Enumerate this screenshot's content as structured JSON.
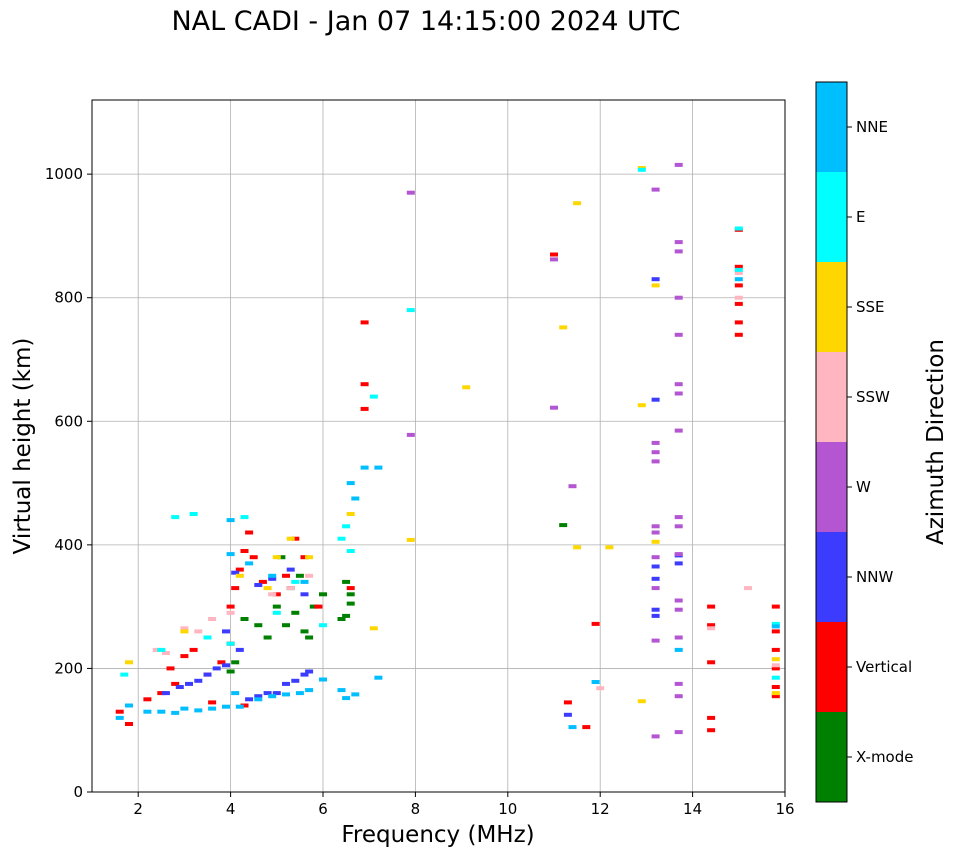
{
  "chart_data": {
    "type": "scatter",
    "title": "NAL CADI - Jan 07 14:15:00 2024 UTC",
    "xlabel": "Frequency (MHz)",
    "ylabel": "Virtual height (km)",
    "xlim": [
      1,
      16
    ],
    "ylim": [
      0,
      1120
    ],
    "xticks": [
      2,
      4,
      6,
      8,
      10,
      12,
      14,
      16
    ],
    "yticks": [
      0,
      200,
      400,
      600,
      800,
      1000
    ],
    "grid": true,
    "colorbar": {
      "label": "Azimuth Direction",
      "categories": [
        "X-mode",
        "Vertical",
        "NNW",
        "W",
        "SSW",
        "SSE",
        "E",
        "NNE"
      ],
      "colors": [
        "#008000",
        "#ff0000",
        "#3c3cff",
        "#b455d2",
        "#ffb6c1",
        "#ffd700",
        "#00ffff",
        "#00bfff"
      ]
    },
    "series": [
      {
        "name": "X-mode",
        "points": [
          [
            4.0,
            195
          ],
          [
            4.1,
            210
          ],
          [
            4.3,
            280
          ],
          [
            4.6,
            270
          ],
          [
            4.8,
            250
          ],
          [
            5.0,
            300
          ],
          [
            5.2,
            270
          ],
          [
            5.4,
            290
          ],
          [
            5.6,
            260
          ],
          [
            5.7,
            250
          ],
          [
            5.8,
            300
          ],
          [
            6.0,
            320
          ],
          [
            6.4,
            280
          ],
          [
            6.5,
            285
          ],
          [
            6.5,
            340
          ],
          [
            6.6,
            305
          ],
          [
            6.6,
            320
          ],
          [
            5.3,
            330
          ],
          [
            5.5,
            350
          ],
          [
            5.1,
            380
          ],
          [
            11.2,
            432
          ]
        ]
      },
      {
        "name": "Vertical",
        "points": [
          [
            1.6,
            130
          ],
          [
            1.8,
            110
          ],
          [
            2.2,
            150
          ],
          [
            2.5,
            160
          ],
          [
            2.7,
            200
          ],
          [
            3.0,
            220
          ],
          [
            3.2,
            230
          ],
          [
            3.5,
            190
          ],
          [
            3.8,
            210
          ],
          [
            4.0,
            240
          ],
          [
            4.0,
            300
          ],
          [
            4.1,
            330
          ],
          [
            4.2,
            360
          ],
          [
            4.3,
            390
          ],
          [
            4.4,
            420
          ],
          [
            4.5,
            380
          ],
          [
            4.7,
            340
          ],
          [
            5.0,
            320
          ],
          [
            5.2,
            350
          ],
          [
            5.4,
            410
          ],
          [
            5.6,
            380
          ],
          [
            5.9,
            300
          ],
          [
            6.6,
            330
          ],
          [
            6.9,
            620
          ],
          [
            6.9,
            660
          ],
          [
            6.9,
            760
          ],
          [
            11.0,
            870
          ],
          [
            11.3,
            145
          ],
          [
            11.9,
            272
          ],
          [
            11.7,
            105
          ],
          [
            2.8,
            175
          ],
          [
            3.6,
            145
          ],
          [
            4.3,
            140
          ],
          [
            14.4,
            300
          ],
          [
            14.4,
            270
          ],
          [
            14.4,
            210
          ],
          [
            14.4,
            120
          ],
          [
            14.4,
            100
          ],
          [
            15.0,
            910
          ],
          [
            15.0,
            850
          ],
          [
            15.0,
            820
          ],
          [
            15.0,
            790
          ],
          [
            15.0,
            760
          ],
          [
            15.0,
            740
          ],
          [
            15.8,
            300
          ],
          [
            15.8,
            260
          ],
          [
            15.8,
            230
          ],
          [
            15.8,
            200
          ],
          [
            15.8,
            170
          ],
          [
            15.8,
            155
          ]
        ]
      },
      {
        "name": "NNW",
        "points": [
          [
            2.6,
            160
          ],
          [
            2.9,
            170
          ],
          [
            3.1,
            175
          ],
          [
            3.3,
            180
          ],
          [
            3.5,
            190
          ],
          [
            3.7,
            200
          ],
          [
            3.9,
            205
          ],
          [
            4.2,
            230
          ],
          [
            4.4,
            150
          ],
          [
            4.6,
            155
          ],
          [
            4.8,
            160
          ],
          [
            5.0,
            160
          ],
          [
            5.2,
            175
          ],
          [
            5.4,
            180
          ],
          [
            5.6,
            190
          ],
          [
            5.7,
            195
          ],
          [
            4.1,
            355
          ],
          [
            4.6,
            335
          ],
          [
            4.9,
            345
          ],
          [
            5.3,
            360
          ],
          [
            5.6,
            320
          ],
          [
            3.9,
            260
          ],
          [
            11.3,
            125
          ],
          [
            13.2,
            830
          ],
          [
            13.2,
            635
          ],
          [
            13.2,
            365
          ],
          [
            13.2,
            345
          ],
          [
            13.2,
            295
          ],
          [
            13.2,
            285
          ],
          [
            13.7,
            370
          ],
          [
            13.7,
            383
          ]
        ]
      },
      {
        "name": "W",
        "points": [
          [
            7.9,
            970
          ],
          [
            11.0,
            622
          ],
          [
            11.0,
            862
          ],
          [
            13.2,
            975
          ],
          [
            13.2,
            565
          ],
          [
            13.2,
            550
          ],
          [
            13.2,
            535
          ],
          [
            13.2,
            430
          ],
          [
            13.2,
            420
          ],
          [
            13.2,
            380
          ],
          [
            13.2,
            330
          ],
          [
            13.2,
            245
          ],
          [
            13.2,
            90
          ],
          [
            13.7,
            1015
          ],
          [
            13.7,
            890
          ],
          [
            13.7,
            875
          ],
          [
            13.7,
            800
          ],
          [
            13.7,
            740
          ],
          [
            13.7,
            660
          ],
          [
            13.7,
            645
          ],
          [
            13.7,
            585
          ],
          [
            13.7,
            445
          ],
          [
            13.7,
            430
          ],
          [
            13.7,
            385
          ],
          [
            13.7,
            310
          ],
          [
            13.7,
            295
          ],
          [
            13.7,
            250
          ],
          [
            13.7,
            175
          ],
          [
            13.7,
            155
          ],
          [
            13.7,
            97
          ],
          [
            11.4,
            495
          ],
          [
            7.9,
            578
          ]
        ]
      },
      {
        "name": "SSW",
        "points": [
          [
            2.4,
            230
          ],
          [
            2.6,
            225
          ],
          [
            3.0,
            265
          ],
          [
            3.3,
            260
          ],
          [
            3.6,
            280
          ],
          [
            4.0,
            290
          ],
          [
            4.9,
            320
          ],
          [
            5.3,
            330
          ],
          [
            5.7,
            350
          ],
          [
            12.0,
            168
          ],
          [
            14.4,
            265
          ],
          [
            15.0,
            800
          ],
          [
            15.0,
            840
          ],
          [
            15.8,
            205
          ],
          [
            15.2,
            330
          ]
        ]
      },
      {
        "name": "SSE",
        "points": [
          [
            1.8,
            210
          ],
          [
            3.0,
            260
          ],
          [
            4.2,
            350
          ],
          [
            4.8,
            330
          ],
          [
            5.0,
            380
          ],
          [
            5.3,
            410
          ],
          [
            5.7,
            380
          ],
          [
            6.6,
            450
          ],
          [
            7.1,
            265
          ],
          [
            7.9,
            408
          ],
          [
            9.1,
            655
          ],
          [
            11.2,
            752
          ],
          [
            11.5,
            953
          ],
          [
            11.5,
            396
          ],
          [
            12.2,
            396
          ],
          [
            12.9,
            1010
          ],
          [
            12.9,
            626
          ],
          [
            12.9,
            147
          ],
          [
            13.2,
            820
          ],
          [
            13.2,
            405
          ],
          [
            15.8,
            215
          ],
          [
            15.8,
            160
          ]
        ]
      },
      {
        "name": "E",
        "points": [
          [
            1.7,
            190
          ],
          [
            2.5,
            230
          ],
          [
            2.8,
            445
          ],
          [
            3.2,
            450
          ],
          [
            3.5,
            250
          ],
          [
            4.0,
            240
          ],
          [
            4.3,
            445
          ],
          [
            5.0,
            290
          ],
          [
            5.4,
            340
          ],
          [
            6.0,
            270
          ],
          [
            6.4,
            410
          ],
          [
            6.5,
            430
          ],
          [
            6.6,
            390
          ],
          [
            7.1,
            640
          ],
          [
            7.9,
            780
          ],
          [
            12.9,
            1007
          ],
          [
            15.0,
            845
          ],
          [
            15.0,
            912
          ],
          [
            15.8,
            272
          ],
          [
            15.8,
            185
          ]
        ]
      },
      {
        "name": "NNE",
        "points": [
          [
            1.6,
            120
          ],
          [
            1.8,
            140
          ],
          [
            2.2,
            130
          ],
          [
            2.5,
            130
          ],
          [
            2.8,
            128
          ],
          [
            3.0,
            135
          ],
          [
            3.3,
            132
          ],
          [
            3.6,
            135
          ],
          [
            3.9,
            138
          ],
          [
            4.2,
            138
          ],
          [
            4.1,
            160
          ],
          [
            4.6,
            150
          ],
          [
            4.9,
            155
          ],
          [
            5.2,
            158
          ],
          [
            5.5,
            160
          ],
          [
            5.7,
            165
          ],
          [
            6.0,
            182
          ],
          [
            6.4,
            165
          ],
          [
            6.5,
            152
          ],
          [
            6.7,
            158
          ],
          [
            4.0,
            440
          ],
          [
            4.0,
            385
          ],
          [
            4.4,
            370
          ],
          [
            4.9,
            350
          ],
          [
            5.6,
            340
          ],
          [
            6.6,
            500
          ],
          [
            6.7,
            475
          ],
          [
            6.9,
            525
          ],
          [
            7.2,
            525
          ],
          [
            7.2,
            185
          ],
          [
            11.4,
            105
          ],
          [
            11.9,
            178
          ],
          [
            13.7,
            230
          ],
          [
            15.0,
            830
          ],
          [
            15.8,
            268
          ]
        ]
      }
    ]
  }
}
